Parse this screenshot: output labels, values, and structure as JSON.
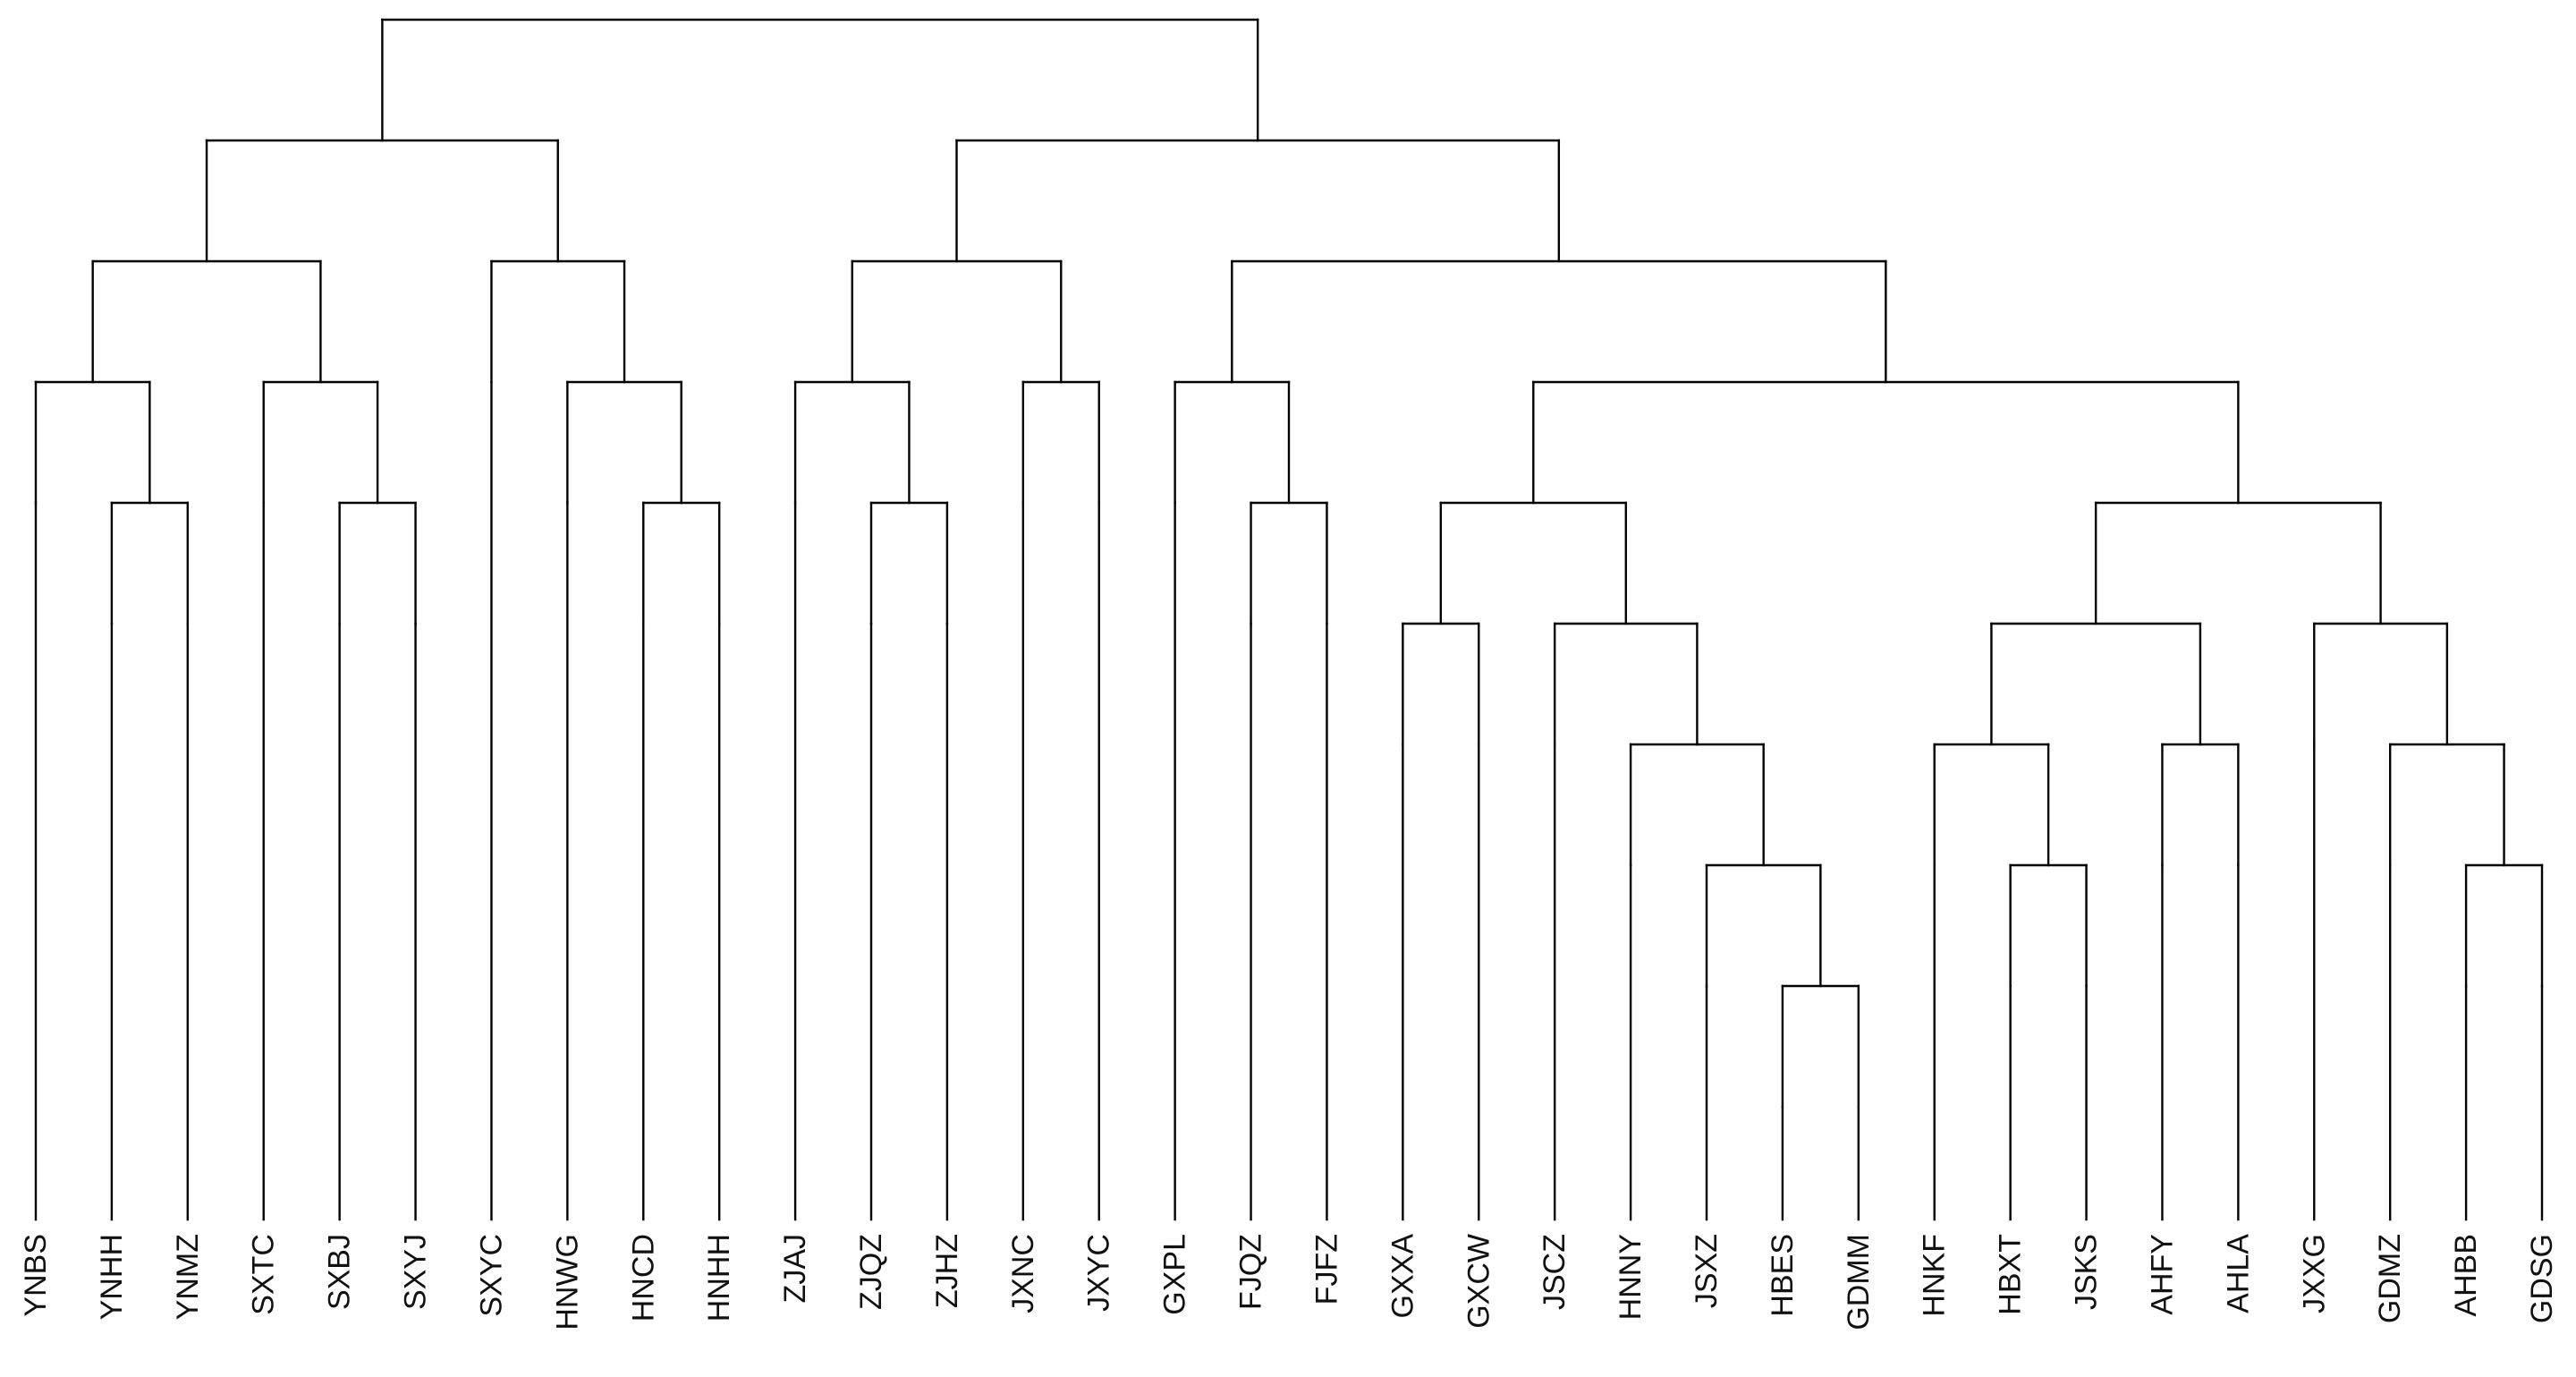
{
  "diagram": {
    "type": "dendrogram",
    "leaves": [
      "YNBS",
      "YNHH",
      "YNMZ",
      "SXTC",
      "SXBJ",
      "SXYJ",
      "SXYC",
      "HNWG",
      "HNCD",
      "HNHH",
      "ZJAJ",
      "ZJQZ",
      "ZJHZ",
      "JXNC",
      "JXYC",
      "GXPL",
      "FJQZ",
      "FJFZ",
      "GXXA",
      "GXCW",
      "JSCZ",
      "HNNY",
      "JSXZ",
      "HBES",
      "GDMM",
      "HNKF",
      "HBXT",
      "JSKS",
      "AHFY",
      "AHLA",
      "JXXG",
      "GDMZ",
      "AHBB",
      "GDSG"
    ],
    "tree": [
      [
        [
          [
            "YNBS",
            [
              "YNHH",
              "YNMZ"
            ]
          ],
          [
            "SXTC",
            [
              "SXBJ",
              "SXYJ"
            ]
          ]
        ],
        [
          "SXYC",
          [
            "HNWG",
            [
              "HNCD",
              "HNHH"
            ]
          ]
        ]
      ],
      [
        [
          [
            "ZJAJ",
            [
              "ZJQZ",
              "ZJHZ"
            ]
          ],
          [
            "JXNC",
            "JXYC"
          ]
        ],
        [
          [
            "GXPL",
            [
              "FJQZ",
              "FJFZ"
            ]
          ],
          [
            [
              [
                "GXXA",
                "GXCW"
              ],
              [
                "JSCZ",
                [
                  "HNNY",
                  [
                    "JSXZ",
                    [
                      "HBES",
                      "GDMM"
                    ]
                  ]
                ]
              ]
            ],
            [
              [
                [
                  "HNKF",
                  [
                    "HBXT",
                    "JSKS"
                  ]
                ],
                [
                  "AHFY",
                  "AHLA"
                ]
              ],
              [
                "JXXG",
                [
                  "GDMZ",
                  [
                    "AHBB",
                    "GDSG"
                  ]
                ]
              ]
            ]
          ]
        ]
      ]
    ],
    "max_depth": 9
  }
}
